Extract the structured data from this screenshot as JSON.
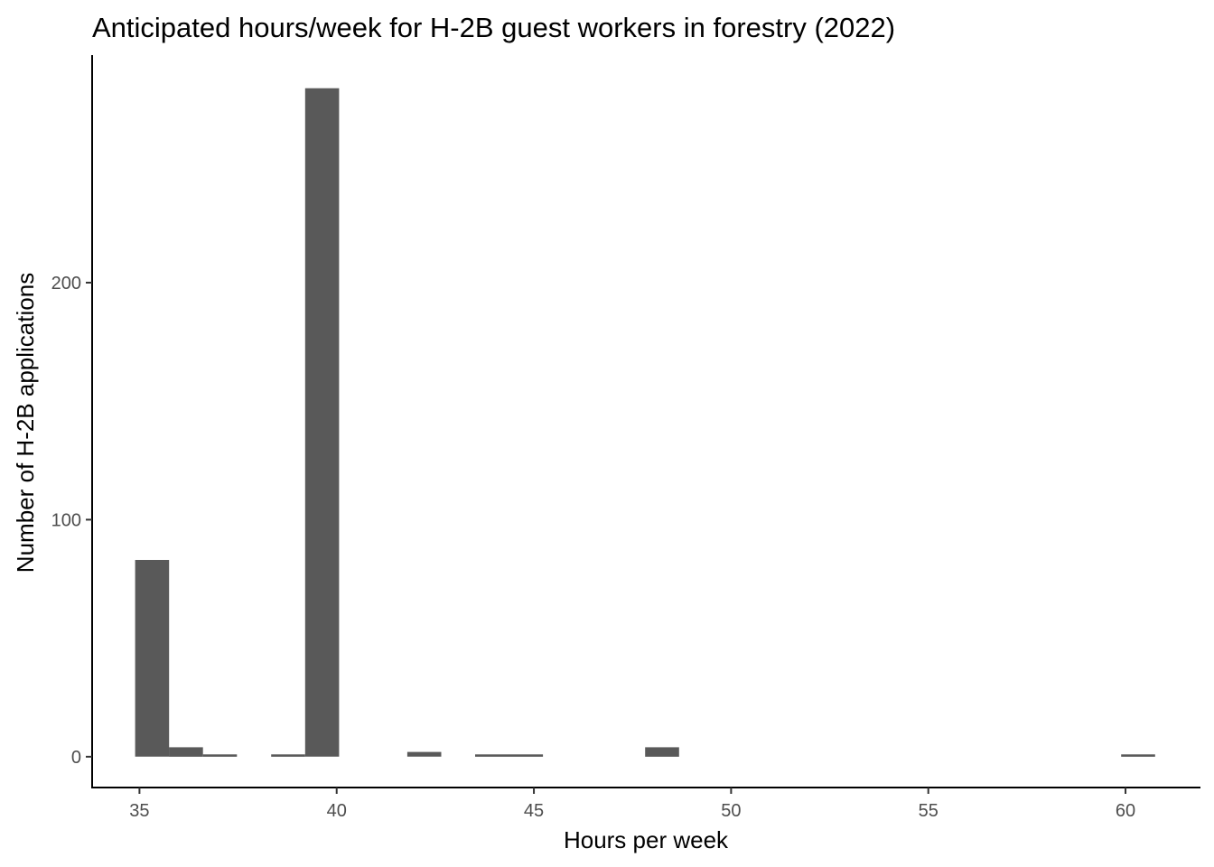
{
  "chart_data": {
    "type": "bar",
    "title": "Anticipated hours/week for H-2B guest workers in forestry (2022)",
    "xlabel": "Hours per week",
    "ylabel": "Number of H-2B applications",
    "xlim": [
      33.8,
      61.9
    ],
    "ylim": [
      -13,
      296
    ],
    "x_ticks": [
      35,
      40,
      45,
      50,
      55,
      60
    ],
    "y_ticks": [
      0,
      100,
      200
    ],
    "bin_width": 0.862,
    "bins": [
      {
        "x_start": 34.89,
        "x_end": 35.75,
        "count": 83
      },
      {
        "x_start": 35.75,
        "x_end": 36.61,
        "count": 4
      },
      {
        "x_start": 36.61,
        "x_end": 37.47,
        "count": 1
      },
      {
        "x_start": 38.34,
        "x_end": 39.2,
        "count": 1
      },
      {
        "x_start": 39.2,
        "x_end": 40.06,
        "count": 282
      },
      {
        "x_start": 41.79,
        "x_end": 42.65,
        "count": 2
      },
      {
        "x_start": 43.51,
        "x_end": 44.37,
        "count": 1
      },
      {
        "x_start": 44.37,
        "x_end": 45.23,
        "count": 1
      },
      {
        "x_start": 47.82,
        "x_end": 48.68,
        "count": 4
      },
      {
        "x_start": 59.89,
        "x_end": 60.75,
        "count": 1
      }
    ],
    "bar_color": "#595959",
    "grid": false,
    "legend": "none"
  }
}
